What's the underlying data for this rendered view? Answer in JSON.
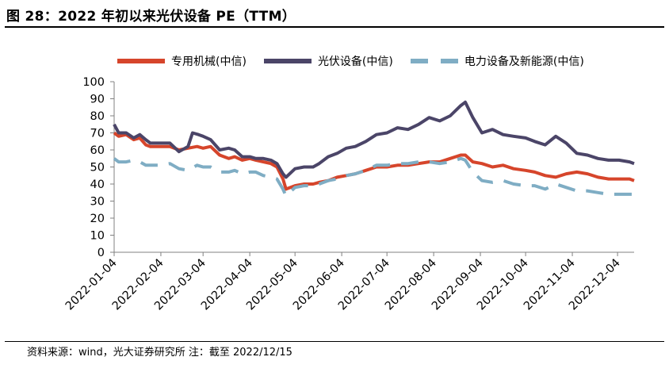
{
  "header": {
    "title": "图 28：2022 年初以来光伏设备 PE（TTM）"
  },
  "footer": {
    "source": "资料来源：wind，光大证券研究所 注：截至 2022/12/15"
  },
  "chart_data": {
    "type": "line",
    "ylim": [
      0,
      100
    ],
    "yticks": [
      0,
      10,
      20,
      30,
      40,
      50,
      60,
      70,
      80,
      90,
      100
    ],
    "xlim": [
      "2022-01-04",
      "2022-12-15"
    ],
    "xticks": [
      "2022-01-04",
      "2022-02-04",
      "2022-03-04",
      "2022-04-04",
      "2022-05-04",
      "2022-06-04",
      "2022-07-04",
      "2022-08-04",
      "2022-09-04",
      "2022-10-04",
      "2022-11-04",
      "2022-12-04"
    ],
    "legend_position": "top",
    "grid": false,
    "series": [
      {
        "name": "专用机械(中信)",
        "color": "#d6452b",
        "style": "solid",
        "points": [
          [
            "2022-01-04",
            70
          ],
          [
            "2022-01-07",
            68
          ],
          [
            "2022-01-12",
            69
          ],
          [
            "2022-01-17",
            66
          ],
          [
            "2022-01-21",
            67
          ],
          [
            "2022-01-25",
            63
          ],
          [
            "2022-01-28",
            62
          ],
          [
            "2022-02-04",
            62
          ],
          [
            "2022-02-10",
            62
          ],
          [
            "2022-02-16",
            60
          ],
          [
            "2022-02-22",
            61
          ],
          [
            "2022-02-28",
            62
          ],
          [
            "2022-03-04",
            61
          ],
          [
            "2022-03-09",
            62
          ],
          [
            "2022-03-15",
            57
          ],
          [
            "2022-03-21",
            55
          ],
          [
            "2022-03-25",
            56
          ],
          [
            "2022-03-30",
            54
          ],
          [
            "2022-04-04",
            55
          ],
          [
            "2022-04-08",
            54
          ],
          [
            "2022-04-13",
            53
          ],
          [
            "2022-04-18",
            52
          ],
          [
            "2022-04-22",
            50
          ],
          [
            "2022-04-26",
            43
          ],
          [
            "2022-04-28",
            37
          ],
          [
            "2022-05-04",
            39
          ],
          [
            "2022-05-10",
            40
          ],
          [
            "2022-05-16",
            40
          ],
          [
            "2022-05-20",
            41
          ],
          [
            "2022-05-26",
            42
          ],
          [
            "2022-06-01",
            44
          ],
          [
            "2022-06-07",
            45
          ],
          [
            "2022-06-13",
            46
          ],
          [
            "2022-06-20",
            48
          ],
          [
            "2022-06-27",
            50
          ],
          [
            "2022-07-04",
            50
          ],
          [
            "2022-07-11",
            51
          ],
          [
            "2022-07-18",
            51
          ],
          [
            "2022-07-25",
            52
          ],
          [
            "2022-08-01",
            53
          ],
          [
            "2022-08-08",
            53
          ],
          [
            "2022-08-15",
            55
          ],
          [
            "2022-08-22",
            57
          ],
          [
            "2022-08-25",
            57
          ],
          [
            "2022-08-30",
            53
          ],
          [
            "2022-09-05",
            52
          ],
          [
            "2022-09-12",
            50
          ],
          [
            "2022-09-19",
            51
          ],
          [
            "2022-09-26",
            49
          ],
          [
            "2022-10-04",
            48
          ],
          [
            "2022-10-10",
            47
          ],
          [
            "2022-10-17",
            45
          ],
          [
            "2022-10-24",
            44
          ],
          [
            "2022-10-31",
            46
          ],
          [
            "2022-11-07",
            47
          ],
          [
            "2022-11-14",
            46
          ],
          [
            "2022-11-21",
            44
          ],
          [
            "2022-11-28",
            43
          ],
          [
            "2022-12-05",
            43
          ],
          [
            "2022-12-12",
            43
          ],
          [
            "2022-12-15",
            42
          ]
        ]
      },
      {
        "name": "光伏设备(中信)",
        "color": "#4b4568",
        "style": "solid",
        "points": [
          [
            "2022-01-04",
            75
          ],
          [
            "2022-01-07",
            70
          ],
          [
            "2022-01-12",
            70
          ],
          [
            "2022-01-17",
            67
          ],
          [
            "2022-01-21",
            69
          ],
          [
            "2022-01-25",
            66
          ],
          [
            "2022-01-28",
            64
          ],
          [
            "2022-02-04",
            64
          ],
          [
            "2022-02-10",
            64
          ],
          [
            "2022-02-16",
            59
          ],
          [
            "2022-02-22",
            62
          ],
          [
            "2022-02-25",
            70
          ],
          [
            "2022-03-01",
            69
          ],
          [
            "2022-03-04",
            68
          ],
          [
            "2022-03-09",
            66
          ],
          [
            "2022-03-15",
            60
          ],
          [
            "2022-03-21",
            61
          ],
          [
            "2022-03-25",
            60
          ],
          [
            "2022-03-30",
            56
          ],
          [
            "2022-04-04",
            56
          ],
          [
            "2022-04-08",
            55
          ],
          [
            "2022-04-13",
            55
          ],
          [
            "2022-04-18",
            54
          ],
          [
            "2022-04-22",
            52
          ],
          [
            "2022-04-26",
            46
          ],
          [
            "2022-04-28",
            44
          ],
          [
            "2022-05-04",
            49
          ],
          [
            "2022-05-10",
            50
          ],
          [
            "2022-05-16",
            50
          ],
          [
            "2022-05-20",
            52
          ],
          [
            "2022-05-26",
            56
          ],
          [
            "2022-06-01",
            58
          ],
          [
            "2022-06-07",
            61
          ],
          [
            "2022-06-13",
            62
          ],
          [
            "2022-06-20",
            65
          ],
          [
            "2022-06-27",
            69
          ],
          [
            "2022-07-04",
            70
          ],
          [
            "2022-07-11",
            73
          ],
          [
            "2022-07-18",
            72
          ],
          [
            "2022-07-25",
            75
          ],
          [
            "2022-08-01",
            79
          ],
          [
            "2022-08-08",
            77
          ],
          [
            "2022-08-15",
            80
          ],
          [
            "2022-08-22",
            86
          ],
          [
            "2022-08-25",
            88
          ],
          [
            "2022-08-30",
            79
          ],
          [
            "2022-09-05",
            70
          ],
          [
            "2022-09-12",
            72
          ],
          [
            "2022-09-19",
            69
          ],
          [
            "2022-09-26",
            68
          ],
          [
            "2022-10-04",
            67
          ],
          [
            "2022-10-10",
            65
          ],
          [
            "2022-10-17",
            63
          ],
          [
            "2022-10-24",
            68
          ],
          [
            "2022-10-31",
            64
          ],
          [
            "2022-11-07",
            58
          ],
          [
            "2022-11-14",
            57
          ],
          [
            "2022-11-21",
            55
          ],
          [
            "2022-11-28",
            54
          ],
          [
            "2022-12-05",
            54
          ],
          [
            "2022-12-12",
            53
          ],
          [
            "2022-12-15",
            52
          ]
        ]
      },
      {
        "name": "电力设备及新能源(中信)",
        "color": "#7fadc4",
        "style": "dashed",
        "points": [
          [
            "2022-01-04",
            55
          ],
          [
            "2022-01-07",
            53
          ],
          [
            "2022-01-12",
            53
          ],
          [
            "2022-01-17",
            54
          ],
          [
            "2022-01-21",
            53
          ],
          [
            "2022-01-25",
            51
          ],
          [
            "2022-01-28",
            51
          ],
          [
            "2022-02-04",
            51
          ],
          [
            "2022-02-10",
            52
          ],
          [
            "2022-02-16",
            49
          ],
          [
            "2022-02-22",
            48
          ],
          [
            "2022-02-28",
            51
          ],
          [
            "2022-03-04",
            50
          ],
          [
            "2022-03-09",
            50
          ],
          [
            "2022-03-15",
            47
          ],
          [
            "2022-03-21",
            47
          ],
          [
            "2022-03-25",
            48
          ],
          [
            "2022-03-30",
            46
          ],
          [
            "2022-04-04",
            47
          ],
          [
            "2022-04-08",
            47
          ],
          [
            "2022-04-13",
            45
          ],
          [
            "2022-04-18",
            44
          ],
          [
            "2022-04-22",
            43
          ],
          [
            "2022-04-26",
            37
          ],
          [
            "2022-04-28",
            33
          ],
          [
            "2022-05-04",
            38
          ],
          [
            "2022-05-10",
            39
          ],
          [
            "2022-05-16",
            39
          ],
          [
            "2022-05-20",
            40
          ],
          [
            "2022-05-26",
            42
          ],
          [
            "2022-06-01",
            43
          ],
          [
            "2022-06-07",
            45
          ],
          [
            "2022-06-13",
            46
          ],
          [
            "2022-06-20",
            48
          ],
          [
            "2022-06-27",
            51
          ],
          [
            "2022-07-04",
            51
          ],
          [
            "2022-07-11",
            52
          ],
          [
            "2022-07-18",
            52
          ],
          [
            "2022-07-25",
            53
          ],
          [
            "2022-08-01",
            53
          ],
          [
            "2022-08-08",
            52
          ],
          [
            "2022-08-15",
            53
          ],
          [
            "2022-08-22",
            55
          ],
          [
            "2022-08-25",
            54
          ],
          [
            "2022-08-30",
            47
          ],
          [
            "2022-09-05",
            42
          ],
          [
            "2022-09-12",
            41
          ],
          [
            "2022-09-19",
            42
          ],
          [
            "2022-09-26",
            40
          ],
          [
            "2022-10-04",
            39
          ],
          [
            "2022-10-10",
            39
          ],
          [
            "2022-10-17",
            37
          ],
          [
            "2022-10-24",
            40
          ],
          [
            "2022-10-31",
            38
          ],
          [
            "2022-11-07",
            36
          ],
          [
            "2022-11-14",
            36
          ],
          [
            "2022-11-21",
            35
          ],
          [
            "2022-11-28",
            34
          ],
          [
            "2022-12-05",
            34
          ],
          [
            "2022-12-12",
            34
          ],
          [
            "2022-12-15",
            34
          ]
        ]
      }
    ]
  }
}
